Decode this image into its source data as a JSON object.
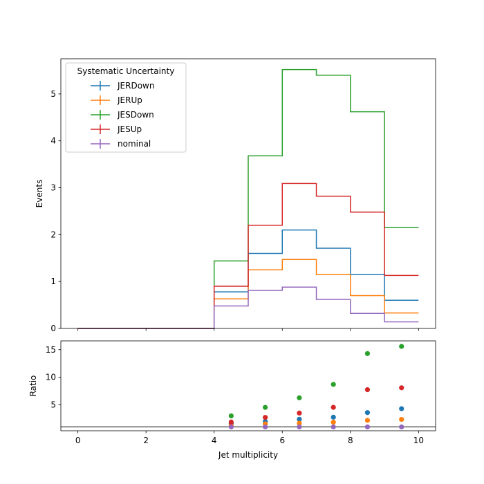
{
  "chart_data": [
    {
      "type": "line",
      "ylabel": "Events",
      "xlim": [
        -0.5,
        10.5
      ],
      "ylim": [
        0,
        5.75
      ],
      "yticks": [
        0,
        1,
        2,
        3,
        4,
        5
      ],
      "xticks": [
        0,
        2,
        4,
        6,
        8,
        10
      ],
      "bin_edges": [
        0,
        1,
        2,
        3,
        4,
        5,
        6,
        7,
        8,
        9,
        10
      ],
      "legend": {
        "title": "Systematic Uncertainty",
        "placement": "top-left"
      },
      "series": [
        {
          "name": "JERDown",
          "color": "#1f77b4",
          "values": [
            0,
            0,
            0,
            0,
            0.78,
            1.6,
            2.1,
            1.71,
            1.15,
            0.6
          ]
        },
        {
          "name": "JERUp",
          "color": "#ff7f0e",
          "values": [
            0,
            0,
            0,
            0,
            0.63,
            1.25,
            1.47,
            1.15,
            0.7,
            0.33
          ]
        },
        {
          "name": "JESDown",
          "color": "#2ca02c",
          "values": [
            0,
            0,
            0,
            0,
            1.44,
            3.68,
            5.52,
            5.4,
            4.62,
            2.15
          ]
        },
        {
          "name": "JESUp",
          "color": "#d62728",
          "values": [
            0,
            0,
            0,
            0,
            0.9,
            2.2,
            3.09,
            2.82,
            2.48,
            1.13
          ]
        },
        {
          "name": "nominal",
          "color": "#9467bd",
          "values": [
            0,
            0,
            0,
            0,
            0.48,
            0.81,
            0.88,
            0.62,
            0.32,
            0.14
          ]
        }
      ]
    },
    {
      "type": "scatter",
      "xlabel": "Jet multiplicity",
      "ylabel": "Ratio",
      "xlim": [
        -0.5,
        10.5
      ],
      "ylim": [
        0.3,
        16.6
      ],
      "yticks": [
        5,
        10,
        15
      ],
      "xticks": [
        0,
        2,
        4,
        6,
        8,
        10
      ],
      "reference_line": 1,
      "x": [
        4.5,
        5.5,
        6.5,
        7.5,
        8.5,
        9.5
      ],
      "series": [
        {
          "name": "JERDown",
          "color": "#1f77b4",
          "values": [
            1.62,
            1.98,
            2.39,
            2.76,
            3.6,
            4.3
          ]
        },
        {
          "name": "JERUp",
          "color": "#ff7f0e",
          "values": [
            1.31,
            1.54,
            1.67,
            1.85,
            2.19,
            2.36
          ]
        },
        {
          "name": "JESDown",
          "color": "#2ca02c",
          "values": [
            3.0,
            4.54,
            6.27,
            8.71,
            14.3,
            15.6
          ]
        },
        {
          "name": "JESUp",
          "color": "#d62728",
          "values": [
            1.88,
            2.72,
            3.51,
            4.55,
            7.75,
            8.1
          ]
        },
        {
          "name": "nominal",
          "color": "#9467bd",
          "values": [
            1,
            1,
            1,
            1,
            1,
            1
          ]
        }
      ]
    }
  ]
}
